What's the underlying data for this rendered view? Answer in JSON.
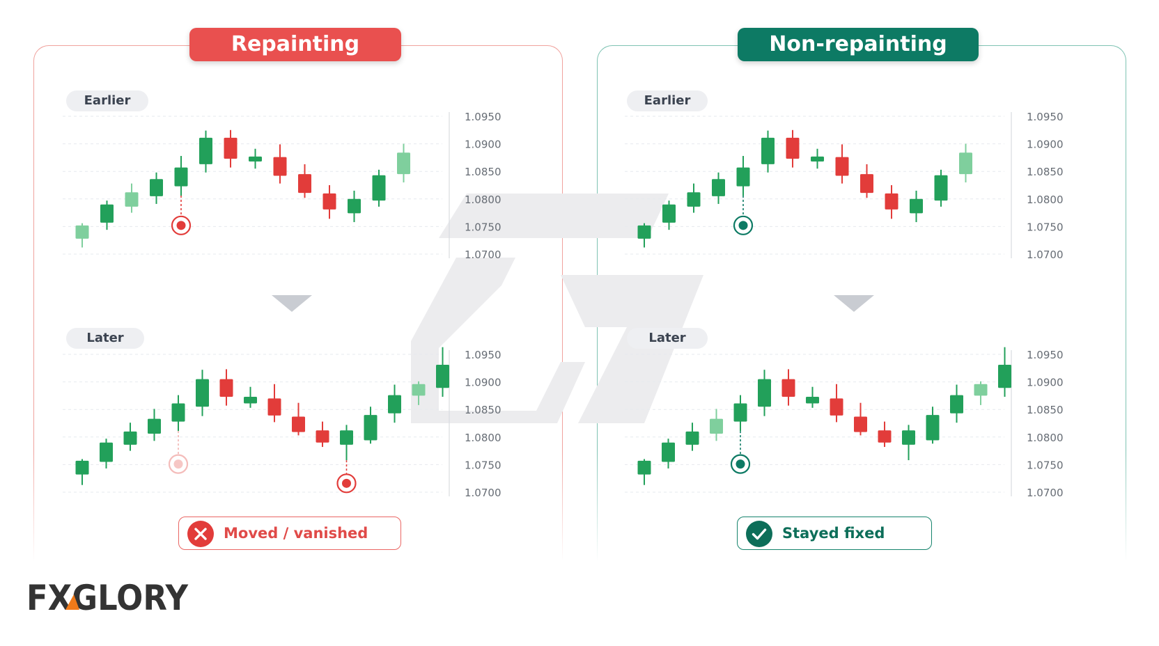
{
  "brand": {
    "name": "FXGLORY"
  },
  "colors": {
    "bull": "#22a05a",
    "bull_light": "#7fcf9d",
    "bear": "#e23c3a",
    "repaint_accent": "#e9504f",
    "fixed_accent": "#0d7a64",
    "grid": "#e6e9ee",
    "axis_text": "#666c74",
    "watermark": "#ececee"
  },
  "panels": {
    "left": {
      "title": "Repainting",
      "earlier_label": "Earlier",
      "later_label": "Later",
      "result_label": "Moved / vanished",
      "result_icon": "close-icon"
    },
    "right": {
      "title": "Non-repainting",
      "earlier_label": "Earlier",
      "later_label": "Later",
      "result_label": "Stayed fixed",
      "result_icon": "check-icon"
    }
  },
  "chart_data": [
    {
      "id": "repainting-earlier",
      "type": "candlestick",
      "y_ticks": [
        "1.0950",
        "1.0900",
        "1.0850",
        "1.0800",
        "1.0750",
        "1.0700"
      ],
      "ylim": [
        1.07,
        1.095
      ],
      "candles": [
        {
          "o": 1.0728,
          "h": 1.0756,
          "l": 1.0712,
          "c": 1.0752,
          "light": true
        },
        {
          "o": 1.0757,
          "h": 1.0797,
          "l": 1.0744,
          "c": 1.079
        },
        {
          "o": 1.0786,
          "h": 1.0828,
          "l": 1.0775,
          "c": 1.0812,
          "light": true
        },
        {
          "o": 1.0805,
          "h": 1.0848,
          "l": 1.0791,
          "c": 1.0836
        },
        {
          "o": 1.0823,
          "h": 1.0878,
          "l": 1.0806,
          "c": 1.0857
        },
        {
          "o": 1.0863,
          "h": 1.0924,
          "l": 1.0848,
          "c": 1.0911
        },
        {
          "o": 1.0911,
          "h": 1.0925,
          "l": 1.0857,
          "c": 1.0873
        },
        {
          "o": 1.0868,
          "h": 1.0891,
          "l": 1.0855,
          "c": 1.0877
        },
        {
          "o": 1.0876,
          "h": 1.0899,
          "l": 1.0828,
          "c": 1.0842
        },
        {
          "o": 1.0845,
          "h": 1.0863,
          "l": 1.0802,
          "c": 1.0811
        },
        {
          "o": 1.081,
          "h": 1.0825,
          "l": 1.0764,
          "c": 1.0781
        },
        {
          "o": 1.0774,
          "h": 1.0815,
          "l": 1.0758,
          "c": 1.08
        },
        {
          "o": 1.0797,
          "h": 1.0853,
          "l": 1.0786,
          "c": 1.0843
        },
        {
          "o": 1.0845,
          "h": 1.09,
          "l": 1.083,
          "c": 1.0884,
          "light": true
        }
      ],
      "signals": [
        {
          "candle": 4,
          "price": 1.0752,
          "style": "red"
        }
      ]
    },
    {
      "id": "repainting-later",
      "type": "candlestick",
      "y_ticks": [
        "1.0950",
        "1.0900",
        "1.0850",
        "1.0800",
        "1.0750",
        "1.0700"
      ],
      "ylim": [
        1.07,
        1.095
      ],
      "candles": [
        {
          "o": 1.0732,
          "h": 1.076,
          "l": 1.0713,
          "c": 1.0757
        },
        {
          "o": 1.0755,
          "h": 1.0797,
          "l": 1.0743,
          "c": 1.079
        },
        {
          "o": 1.0786,
          "h": 1.0826,
          "l": 1.0775,
          "c": 1.081
        },
        {
          "o": 1.0806,
          "h": 1.0851,
          "l": 1.0793,
          "c": 1.0833
        },
        {
          "o": 1.0828,
          "h": 1.0876,
          "l": 1.0811,
          "c": 1.0861
        },
        {
          "o": 1.0855,
          "h": 1.0922,
          "l": 1.0838,
          "c": 1.0905
        },
        {
          "o": 1.0905,
          "h": 1.0923,
          "l": 1.0857,
          "c": 1.0873
        },
        {
          "o": 1.0861,
          "h": 1.0891,
          "l": 1.0853,
          "c": 1.0873
        },
        {
          "o": 1.087,
          "h": 1.0896,
          "l": 1.0827,
          "c": 1.0839
        },
        {
          "o": 1.0837,
          "h": 1.0862,
          "l": 1.0803,
          "c": 1.0809
        },
        {
          "o": 1.0812,
          "h": 1.0828,
          "l": 1.0782,
          "c": 1.079
        },
        {
          "o": 1.0786,
          "h": 1.0822,
          "l": 1.0758,
          "c": 1.0812
        },
        {
          "o": 1.0794,
          "h": 1.0855,
          "l": 1.0788,
          "c": 1.084
        },
        {
          "o": 1.0843,
          "h": 1.0895,
          "l": 1.0826,
          "c": 1.0876
        },
        {
          "o": 1.0875,
          "h": 1.0901,
          "l": 1.0858,
          "c": 1.0896,
          "light": true
        },
        {
          "o": 1.0889,
          "h": 1.0963,
          "l": 1.0873,
          "c": 1.0931
        }
      ],
      "signals": [
        {
          "candle": 4,
          "price": 1.0751,
          "style": "faded"
        },
        {
          "candle": 11,
          "price": 1.0716,
          "style": "red"
        }
      ]
    },
    {
      "id": "non-repainting-earlier",
      "type": "candlestick",
      "y_ticks": [
        "1.0950",
        "1.0900",
        "1.0850",
        "1.0800",
        "1.0750",
        "1.0700"
      ],
      "ylim": [
        1.07,
        1.095
      ],
      "candles": [
        {
          "o": 1.0728,
          "h": 1.0756,
          "l": 1.0712,
          "c": 1.0752
        },
        {
          "o": 1.0757,
          "h": 1.0797,
          "l": 1.0744,
          "c": 1.079
        },
        {
          "o": 1.0786,
          "h": 1.0828,
          "l": 1.0775,
          "c": 1.0812
        },
        {
          "o": 1.0805,
          "h": 1.0848,
          "l": 1.0791,
          "c": 1.0836
        },
        {
          "o": 1.0823,
          "h": 1.0878,
          "l": 1.0806,
          "c": 1.0857
        },
        {
          "o": 1.0863,
          "h": 1.0924,
          "l": 1.0848,
          "c": 1.0911
        },
        {
          "o": 1.0911,
          "h": 1.0925,
          "l": 1.0857,
          "c": 1.0873
        },
        {
          "o": 1.0868,
          "h": 1.0891,
          "l": 1.0855,
          "c": 1.0877
        },
        {
          "o": 1.0876,
          "h": 1.0899,
          "l": 1.0828,
          "c": 1.0842
        },
        {
          "o": 1.0845,
          "h": 1.0863,
          "l": 1.0802,
          "c": 1.0811
        },
        {
          "o": 1.081,
          "h": 1.0825,
          "l": 1.0764,
          "c": 1.0781
        },
        {
          "o": 1.0774,
          "h": 1.0815,
          "l": 1.0758,
          "c": 1.08
        },
        {
          "o": 1.0797,
          "h": 1.0853,
          "l": 1.0786,
          "c": 1.0843
        },
        {
          "o": 1.0845,
          "h": 1.09,
          "l": 1.083,
          "c": 1.0884,
          "light": true
        }
      ],
      "signals": [
        {
          "candle": 4,
          "price": 1.0752,
          "style": "teal"
        }
      ]
    },
    {
      "id": "non-repainting-later",
      "type": "candlestick",
      "y_ticks": [
        "1.0950",
        "1.0900",
        "1.0850",
        "1.0800",
        "1.0750",
        "1.0700"
      ],
      "ylim": [
        1.07,
        1.095
      ],
      "candles": [
        {
          "o": 1.0732,
          "h": 1.076,
          "l": 1.0713,
          "c": 1.0757
        },
        {
          "o": 1.0755,
          "h": 1.0797,
          "l": 1.0743,
          "c": 1.079
        },
        {
          "o": 1.0786,
          "h": 1.0826,
          "l": 1.0775,
          "c": 1.081
        },
        {
          "o": 1.0806,
          "h": 1.0851,
          "l": 1.0793,
          "c": 1.0833,
          "light": true
        },
        {
          "o": 1.0828,
          "h": 1.0876,
          "l": 1.0811,
          "c": 1.0861
        },
        {
          "o": 1.0855,
          "h": 1.0922,
          "l": 1.0838,
          "c": 1.0905
        },
        {
          "o": 1.0905,
          "h": 1.0923,
          "l": 1.0857,
          "c": 1.0873
        },
        {
          "o": 1.0861,
          "h": 1.0891,
          "l": 1.0853,
          "c": 1.0873
        },
        {
          "o": 1.087,
          "h": 1.0896,
          "l": 1.0827,
          "c": 1.0839
        },
        {
          "o": 1.0837,
          "h": 1.0862,
          "l": 1.0803,
          "c": 1.0809
        },
        {
          "o": 1.0812,
          "h": 1.0828,
          "l": 1.0782,
          "c": 1.079
        },
        {
          "o": 1.0786,
          "h": 1.0822,
          "l": 1.0758,
          "c": 1.0812
        },
        {
          "o": 1.0794,
          "h": 1.0855,
          "l": 1.0788,
          "c": 1.084
        },
        {
          "o": 1.0843,
          "h": 1.0895,
          "l": 1.0826,
          "c": 1.0876
        },
        {
          "o": 1.0875,
          "h": 1.0901,
          "l": 1.0858,
          "c": 1.0896,
          "light": true
        },
        {
          "o": 1.0889,
          "h": 1.0963,
          "l": 1.0873,
          "c": 1.0931
        }
      ],
      "signals": [
        {
          "candle": 4,
          "price": 1.0751,
          "style": "teal"
        }
      ]
    }
  ]
}
